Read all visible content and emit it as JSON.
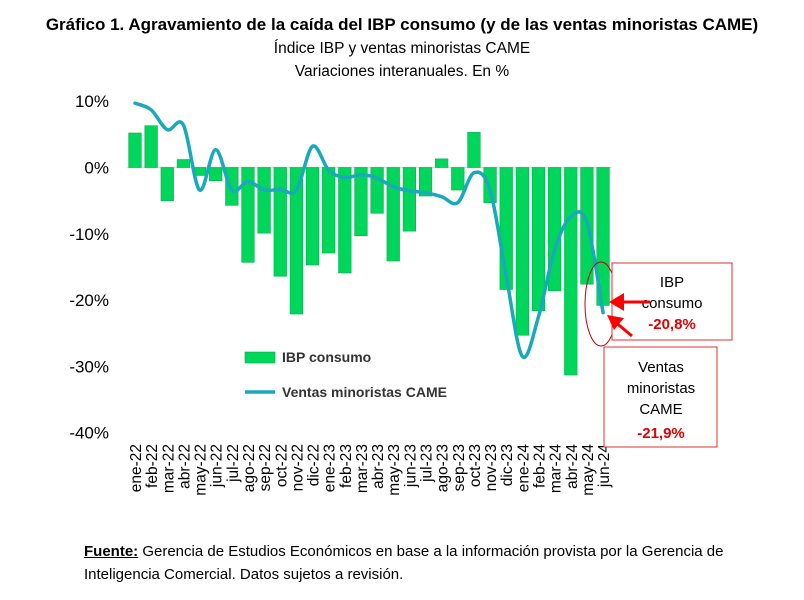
{
  "chart_data": {
    "type": "bar",
    "title": "Gráfico 1. Agravamiento de la caída del IBP consumo (y de las ventas minoristas CAME)",
    "subtitle": [
      "Índice IBP y ventas minoristas CAME",
      "Variaciones interanuales. En %"
    ],
    "categories": [
      "ene-22",
      "feb-22",
      "mar-22",
      "abr-22",
      "may-22",
      "jun-22",
      "jul-22",
      "ago-22",
      "sep-22",
      "oct-22",
      "nov-22",
      "dic-22",
      "ene-23",
      "feb-23",
      "mar-23",
      "abr-23",
      "may-23",
      "jun-23",
      "jul-23",
      "ago-23",
      "sep-23",
      "oct-23",
      "nov-23",
      "dic-23",
      "ene-24",
      "feb-24",
      "mar-24",
      "abr-24",
      "may-24",
      "jun-24"
    ],
    "series": [
      {
        "name": "IBP consumo",
        "type": "bar",
        "color": "#00D65C",
        "values": [
          5.2,
          6.3,
          -5.0,
          1.2,
          -1.2,
          -2.0,
          -5.7,
          -14.3,
          -9.9,
          -16.4,
          -22.1,
          -14.7,
          -12.9,
          -15.9,
          -10.3,
          -6.9,
          -14.1,
          -9.6,
          -4.3,
          1.3,
          -3.4,
          5.3,
          -5.3,
          -18.4,
          -25.3,
          -21.6,
          -18.6,
          -31.3,
          -17.6,
          -20.8
        ]
      },
      {
        "name": "Ventas minoristas CAME",
        "type": "line",
        "color": "#1AA9B8",
        "values": [
          9.7,
          8.7,
          5.7,
          6.4,
          -3.4,
          2.7,
          -3.4,
          -2.1,
          -3.4,
          -3.3,
          -3.4,
          3.2,
          -0.4,
          -1.5,
          -1.1,
          -1.6,
          -2.9,
          -3.5,
          -3.8,
          -4.4,
          -5.3,
          -0.8,
          -3.4,
          -16.4,
          -28.5,
          -22.5,
          -12.4,
          -7.4,
          -8.3,
          -21.9
        ]
      }
    ],
    "yticks": [
      "10%",
      "0%",
      "-10%",
      "-20%",
      "-30%",
      "-40%"
    ],
    "ylim": [
      -40,
      10
    ],
    "grid": false,
    "legend": "center",
    "annotations": [
      {
        "lines": [
          "IBP",
          "consumo"
        ],
        "value": "-20,8%"
      },
      {
        "lines": [
          "Ventas",
          "minoristas",
          "CAME"
        ],
        "value": "-21,9%"
      }
    ]
  },
  "footer": {
    "label": "Fuente:",
    "text": " Gerencia de Estudios Económicos en base a la información provista por la Gerencia de Inteligencia Comercial. Datos sujetos a revisión."
  }
}
